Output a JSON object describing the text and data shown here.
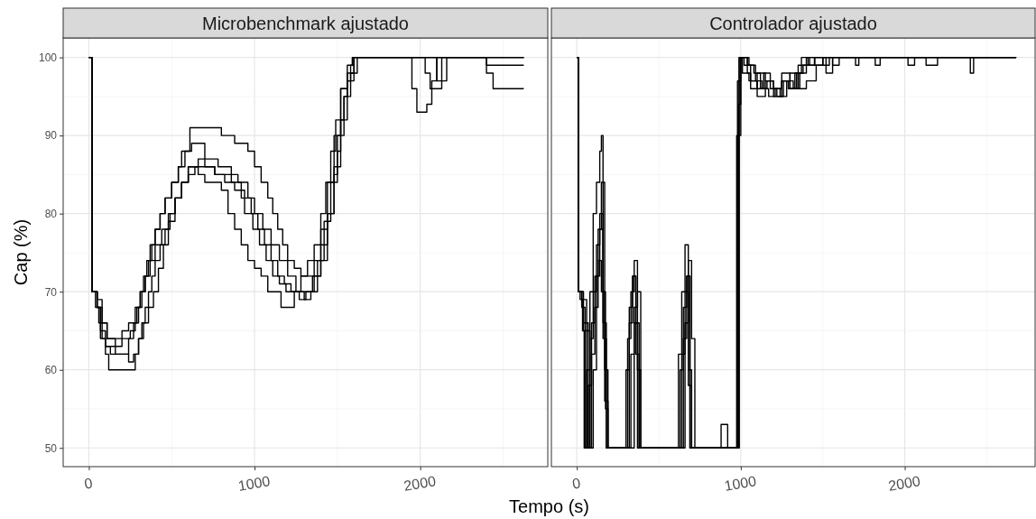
{
  "chart_data": [
    {
      "type": "step",
      "title": "Microbenchmark ajustado",
      "ylabel": "Cap (%)",
      "xlabel": "Tempo (s)",
      "xlim": [
        -155,
        2770
      ],
      "ylim": [
        47.6,
        102.5
      ],
      "xticks": [
        0,
        1000,
        2000
      ],
      "yticks": [
        50,
        60,
        70,
        80,
        90,
        100
      ],
      "grid": true,
      "series": [
        {
          "color": "#000000",
          "x": [
            0,
            20,
            40,
            60,
            80,
            100,
            150,
            200,
            250,
            280,
            300,
            320,
            340,
            360,
            380,
            400,
            430,
            460,
            500,
            540,
            560,
            610,
            800,
            880,
            960,
            1000,
            1040,
            1080,
            1110,
            1140,
            1170,
            1200,
            1240,
            1280,
            1320,
            1360,
            1400,
            1440,
            1480,
            1500,
            1520,
            1540,
            1560,
            1580,
            1600,
            1950,
            1980,
            2040,
            2070,
            2100,
            2625
          ],
          "values": [
            100,
            70,
            68,
            66,
            64,
            63,
            63,
            64,
            65,
            66,
            68,
            70,
            72,
            74,
            76,
            78,
            80,
            82,
            84,
            86,
            88,
            91,
            90,
            89,
            88,
            86,
            84,
            82,
            80,
            78,
            76,
            74,
            73,
            72,
            72,
            74,
            74,
            80,
            85,
            88,
            92,
            95,
            97,
            99,
            100,
            96,
            93,
            94,
            97,
            100,
            100
          ]
        },
        {
          "color": "#000000",
          "x": [
            0,
            20,
            50,
            70,
            100,
            120,
            260,
            280,
            300,
            320,
            340,
            360,
            380,
            400,
            430,
            460,
            490,
            520,
            560,
            600,
            660,
            700,
            760,
            800,
            840,
            880,
            920,
            960,
            1000,
            1040,
            1080,
            1120,
            1160,
            1200,
            1240,
            1280,
            1320,
            1360,
            1400,
            1430,
            1460,
            1490,
            1520,
            1560,
            1600,
            2380,
            2400,
            2440,
            2625
          ],
          "values": [
            100,
            70,
            68,
            64,
            62,
            60,
            60,
            62,
            64,
            66,
            68,
            70,
            72,
            74,
            76,
            78,
            80,
            82,
            84,
            86,
            85,
            84,
            84,
            83,
            80,
            78,
            76,
            74,
            73,
            72,
            70,
            70,
            68,
            68,
            70,
            72,
            74,
            76,
            80,
            84,
            88,
            92,
            96,
            98,
            100,
            100,
            98,
            96,
            96
          ]
        },
        {
          "color": "#000000",
          "x": [
            0,
            20,
            50,
            70,
            100,
            130,
            200,
            240,
            270,
            290,
            310,
            330,
            350,
            370,
            400,
            430,
            460,
            500,
            540,
            580,
            620,
            700,
            760,
            840,
            900,
            960,
            1000,
            1050,
            1100,
            1150,
            1200,
            1250,
            1300,
            1360,
            1400,
            1440,
            1480,
            1520,
            1560,
            1590,
            2000,
            2030,
            2060,
            2100,
            2130,
            2625
          ],
          "values": [
            100,
            70,
            68,
            65,
            63,
            62,
            62,
            64,
            66,
            68,
            70,
            72,
            74,
            76,
            78,
            80,
            82,
            84,
            86,
            88,
            89,
            86,
            85,
            85,
            84,
            82,
            80,
            78,
            76,
            74,
            72,
            70,
            70,
            72,
            78,
            84,
            90,
            96,
            99,
            100,
            100,
            98,
            96,
            96,
            100,
            100
          ]
        },
        {
          "color": "#000000",
          "x": [
            0,
            20,
            50,
            80,
            110,
            150,
            200,
            240,
            280,
            310,
            340,
            370,
            400,
            440,
            480,
            520,
            560,
            600,
            640,
            700,
            760,
            820,
            880,
            940,
            990,
            1030,
            1070,
            1110,
            1150,
            1190,
            1230,
            1270,
            1310,
            1350,
            1400,
            1440,
            1480,
            1520,
            1560,
            1600,
            2380,
            2400,
            2625
          ],
          "values": [
            100,
            70,
            68,
            66,
            64,
            64,
            65,
            66,
            68,
            70,
            72,
            74,
            76,
            78,
            80,
            82,
            84,
            85,
            86,
            86,
            85,
            84,
            83,
            80,
            78,
            76,
            74,
            72,
            71,
            70,
            70,
            69,
            70,
            72,
            76,
            80,
            86,
            92,
            97,
            100,
            100,
            99,
            99
          ]
        },
        {
          "color": "#000000",
          "x": [
            0,
            20,
            50,
            80,
            110,
            160,
            240,
            270,
            300,
            330,
            360,
            390,
            420,
            450,
            480,
            520,
            560,
            600,
            660,
            720,
            780,
            860,
            920,
            980,
            1020,
            1060,
            1100,
            1140,
            1180,
            1220,
            1260,
            1300,
            1340,
            1380,
            1420,
            1460,
            1500,
            1540,
            1580,
            1620,
            2080,
            2100,
            2140,
            2160,
            2625
          ],
          "values": [
            100,
            70,
            69,
            66,
            64,
            62,
            61,
            62,
            64,
            66,
            68,
            70,
            73,
            76,
            79,
            82,
            84,
            86,
            87,
            87,
            86,
            84,
            82,
            80,
            78,
            76,
            74,
            72,
            71,
            70,
            70,
            69,
            70,
            74,
            79,
            84,
            90,
            95,
            98,
            100,
            100,
            97,
            97,
            100,
            100
          ]
        }
      ]
    },
    {
      "type": "step",
      "title": "Controlador ajustado",
      "xlim": [
        -155,
        2795
      ],
      "ylim": [
        47.6,
        102.5
      ],
      "xticks": [
        0,
        1000,
        2000
      ],
      "yticks": [
        50,
        60,
        70,
        80,
        90,
        100
      ],
      "grid": true,
      "tick_labels": "x",
      "series": [
        {
          "color": "#000000",
          "x": [
            0,
            10,
            20,
            35,
            45,
            60,
            80,
            100,
            120,
            140,
            150,
            160,
            175,
            190,
            280,
            300,
            320,
            340,
            360,
            380,
            400,
            600,
            620,
            640,
            660,
            680,
            700,
            960,
            980,
            1000,
            1040,
            1060,
            1100,
            1150,
            1200,
            1250,
            1300,
            1350,
            1400,
            1450,
            1500,
            1700,
            1720,
            2400,
            2420,
            2680
          ],
          "values": [
            100,
            70,
            69,
            65,
            50,
            60,
            70,
            80,
            84,
            88,
            90,
            70,
            55,
            50,
            50,
            60,
            68,
            72,
            62,
            50,
            50,
            50,
            62,
            70,
            76,
            58,
            50,
            50,
            97,
            100,
            98,
            96,
            98,
            97,
            95,
            98,
            96,
            99,
            100,
            99,
            100,
            99,
            100,
            98,
            100,
            100
          ]
        },
        {
          "color": "#000000",
          "x": [
            0,
            10,
            30,
            50,
            70,
            90,
            110,
            130,
            150,
            170,
            190,
            290,
            310,
            330,
            350,
            370,
            390,
            610,
            630,
            650,
            670,
            690,
            870,
            880,
            900,
            920,
            970,
            990,
            1020,
            1060,
            1100,
            1140,
            1180,
            1220,
            1260,
            1300,
            1340,
            1380,
            1420,
            1500,
            1540,
            1560,
            1600,
            1640,
            2680
          ],
          "values": [
            100,
            70,
            68,
            50,
            58,
            66,
            72,
            78,
            84,
            60,
            50,
            50,
            64,
            70,
            74,
            60,
            50,
            50,
            60,
            68,
            72,
            50,
            50,
            53,
            53,
            50,
            50,
            100,
            99,
            97,
            96,
            98,
            96,
            95,
            97,
            96,
            98,
            99,
            100,
            99,
            100,
            99,
            100,
            100,
            100
          ]
        },
        {
          "color": "#000000",
          "x": [
            0,
            10,
            30,
            60,
            80,
            100,
            120,
            140,
            160,
            180,
            300,
            320,
            340,
            360,
            380,
            640,
            660,
            680,
            700,
            720,
            960,
            975,
            1000,
            1050,
            1090,
            1130,
            1170,
            1210,
            1250,
            1290,
            1330,
            1370,
            1410,
            1450,
            1800,
            1820,
            1850,
            1870,
            2680
          ],
          "values": [
            100,
            70,
            69,
            50,
            64,
            70,
            76,
            80,
            66,
            50,
            50,
            66,
            72,
            66,
            50,
            50,
            66,
            74,
            64,
            50,
            50,
            90,
            100,
            99,
            97,
            96,
            95,
            96,
            97,
            96,
            98,
            100,
            99,
            100,
            100,
            99,
            100,
            100,
            100
          ]
        },
        {
          "color": "#000000",
          "x": [
            0,
            10,
            40,
            70,
            90,
            110,
            130,
            150,
            170,
            190,
            310,
            330,
            350,
            370,
            390,
            620,
            640,
            660,
            680,
            700,
            960,
            990,
            1010,
            1050,
            1100,
            1150,
            1200,
            1250,
            1300,
            1350,
            1400,
            1460,
            1500,
            1600,
            2100,
            2130,
            2200,
            2250,
            2680
          ],
          "values": [
            100,
            70,
            66,
            50,
            62,
            68,
            74,
            70,
            56,
            50,
            50,
            62,
            68,
            70,
            50,
            50,
            62,
            70,
            60,
            50,
            50,
            100,
            98,
            97,
            95,
            97,
            96,
            97,
            98,
            96,
            97,
            99,
            100,
            100,
            100,
            99,
            100,
            100,
            100
          ]
        },
        {
          "color": "#000000",
          "x": [
            0,
            10,
            40,
            80,
            100,
            120,
            140,
            160,
            180,
            330,
            350,
            370,
            630,
            650,
            670,
            690,
            960,
            985,
            1000,
            1040,
            1080,
            1120,
            1160,
            1200,
            1240,
            1280,
            1320,
            1360,
            1400,
            1450,
            1520,
            1560,
            2000,
            2020,
            2060,
            2080,
            2680
          ],
          "values": [
            100,
            70,
            65,
            50,
            60,
            72,
            78,
            64,
            50,
            50,
            66,
            50,
            50,
            64,
            72,
            50,
            50,
            94,
            100,
            99,
            98,
            96,
            97,
            96,
            95,
            97,
            96,
            98,
            99,
            100,
            98,
            100,
            100,
            99,
            100,
            100,
            100
          ]
        }
      ]
    }
  ]
}
